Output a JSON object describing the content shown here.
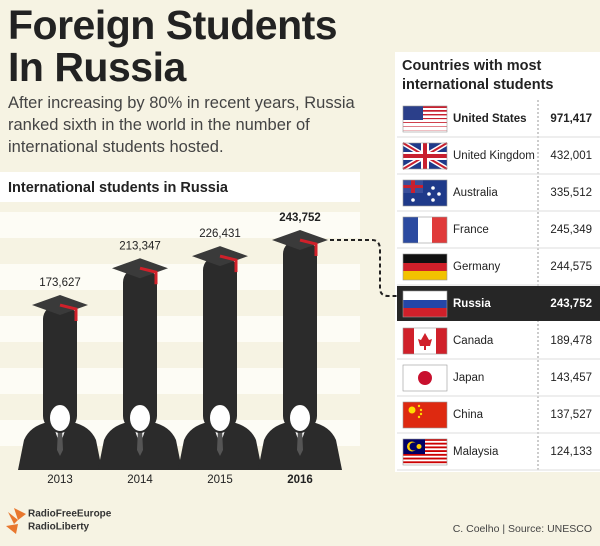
{
  "header": {
    "title": "Foreign Students In Russia",
    "subtitle": "After increasing by 80% in recent years, Russia ranked sixth in the world in the number of international students hosted."
  },
  "chart_data": {
    "type": "bar",
    "title": "International students in Russia",
    "categories": [
      "2013",
      "2014",
      "2015",
      "2016"
    ],
    "values": [
      173627,
      213347,
      226431,
      243752
    ],
    "value_labels": [
      "173,627",
      "213,347",
      "226,431",
      "243,752"
    ],
    "color": "#2b2b2b",
    "accent": "#d0202a",
    "emphasis_index": 3
  },
  "table": {
    "title": "Countries with most international students",
    "rows": [
      [
        "United States",
        "971,417"
      ],
      [
        "United Kingdom",
        "432,001"
      ],
      [
        "Australia",
        "335,512"
      ],
      [
        "France",
        "245,349"
      ],
      [
        "Germany",
        "244,575"
      ],
      [
        "Russia",
        "243,752"
      ],
      [
        "Canada",
        "189,478"
      ],
      [
        "Japan",
        "143,457"
      ],
      [
        "China",
        "137,527"
      ],
      [
        "Malaysia",
        "124,133"
      ]
    ],
    "bold_rows": [
      0,
      5
    ],
    "highlight_row": 5
  },
  "footer": {
    "logo": [
      "RadioFreeEurope",
      "RadioLiberty"
    ],
    "credit": "C. Coelho | Source: UNESCO"
  }
}
